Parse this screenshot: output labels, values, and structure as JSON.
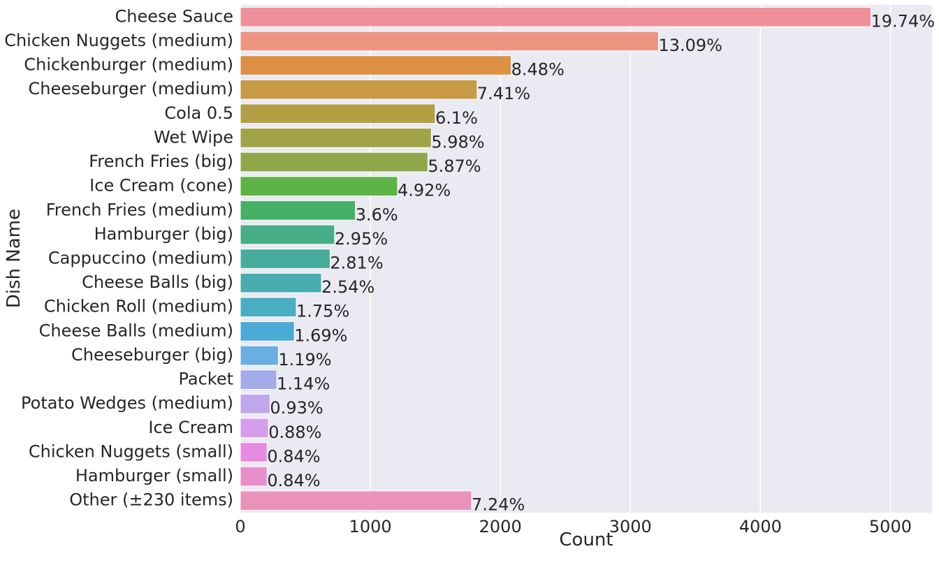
{
  "chart_data": {
    "type": "barh",
    "xlabel": "Count",
    "ylabel": "Dish Name",
    "categories": [
      "Cheese Sauce",
      "Chicken Nuggets (medium)",
      "Chickenburger (medium)",
      "Cheeseburger (medium)",
      "Cola 0.5",
      "Wet Wipe",
      "French Fries (big)",
      "Ice Cream (cone)",
      "French Fries (medium)",
      "Hamburger (big)",
      "Cappuccino (medium)",
      "Cheese Balls (big)",
      "Chicken Roll (medium)",
      "Cheese Balls (medium)",
      "Cheeseburger (big)",
      "Packet",
      "Potato Wedges (medium)",
      "Ice Cream",
      "Chicken Nuggets (small)",
      "Hamburger (small)",
      "Other (±230 items)"
    ],
    "values": [
      4850,
      3216,
      2083,
      1821,
      1499,
      1469,
      1442,
      1209,
      885,
      725,
      690,
      624,
      430,
      415,
      292,
      280,
      228,
      216,
      206,
      206,
      1779
    ],
    "value_labels": [
      "19.74%",
      "13.09%",
      "8.48%",
      "7.41%",
      "6.1%",
      "5.98%",
      "5.87%",
      "4.92%",
      "3.6%",
      "2.95%",
      "2.81%",
      "2.54%",
      "1.75%",
      "1.69%",
      "1.19%",
      "1.14%",
      "0.93%",
      "0.88%",
      "0.84%",
      "0.84%",
      "7.24%"
    ],
    "colors": [
      "#ee919b",
      "#eb9580",
      "#dc9044",
      "#c79a45",
      "#b29f45",
      "#a2a346",
      "#8fa74a",
      "#5db444",
      "#45b068",
      "#47ad87",
      "#48ac9d",
      "#49adae",
      "#4aaec3",
      "#4aacd6",
      "#6aaee2",
      "#a3abe9",
      "#c0a7ec",
      "#d49eea",
      "#e68ce0",
      "#e88fcb",
      "#e993bb"
    ],
    "xlim": [
      0,
      5320
    ],
    "xticks": [
      0,
      1000,
      2000,
      3000,
      4000,
      5000
    ],
    "grid": true
  }
}
